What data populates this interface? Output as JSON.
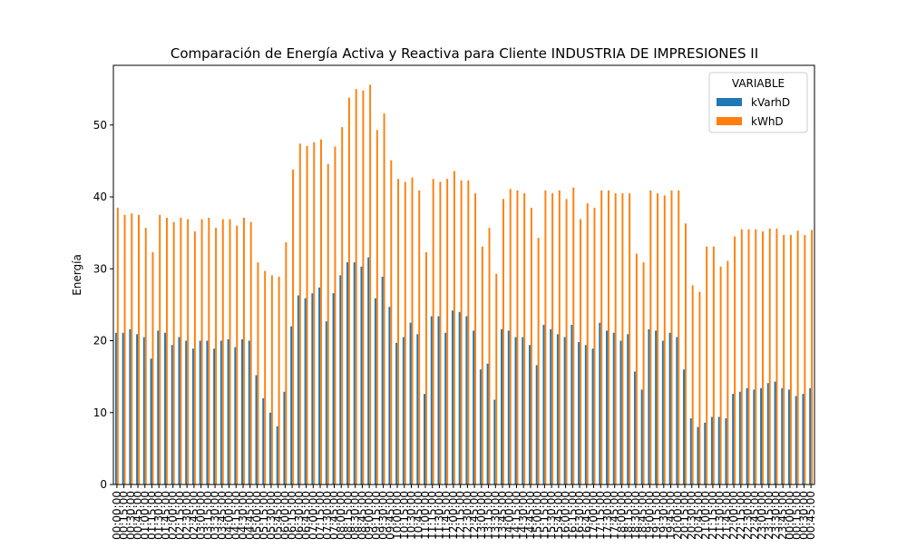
{
  "chart_data": {
    "type": "bar",
    "title": "Comparación de Energía Activa y Reactiva para Cliente INDUSTRIA DE IMPRESIONES II",
    "y_label": "Energía",
    "legend_title": "VARIABLE",
    "legend_position": "upper right",
    "categories": [
      "00:00:00",
      "00:15:00",
      "00:30:00",
      "00:45:00",
      "01:00:00",
      "01:15:00",
      "01:30:00",
      "01:45:00",
      "02:00:00",
      "02:15:00",
      "02:30:00",
      "02:45:00",
      "03:00:00",
      "03:15:00",
      "03:30:00",
      "03:45:00",
      "04:00:00",
      "04:15:00",
      "04:30:00",
      "04:45:00",
      "05:00:00",
      "05:15:00",
      "05:30:00",
      "05:45:00",
      "06:00:00",
      "06:15:00",
      "06:30:00",
      "06:45:00",
      "07:00:00",
      "07:15:00",
      "07:30:00",
      "07:45:00",
      "08:00:00",
      "08:15:00",
      "08:30:00",
      "08:45:00",
      "09:00:00",
      "09:15:00",
      "09:30:00",
      "09:45:00",
      "10:00:00",
      "10:15:00",
      "10:30:00",
      "10:45:00",
      "11:00:00",
      "11:15:00",
      "11:30:00",
      "11:45:00",
      "12:00:00",
      "12:15:00",
      "12:30:00",
      "12:45:00",
      "13:00:00",
      "13:15:00",
      "13:30:00",
      "13:45:00",
      "14:00:00",
      "14:15:00",
      "14:30:00",
      "14:45:00",
      "15:00:00",
      "15:15:00",
      "15:30:00",
      "15:45:00",
      "16:00:00",
      "16:15:00",
      "16:30:00",
      "16:45:00",
      "17:00:00",
      "17:15:00",
      "17:30:00",
      "17:45:00",
      "18:00:00",
      "18:15:00",
      "18:30:00",
      "18:45:00",
      "19:00:00",
      "19:15:00",
      "19:30:00",
      "19:45:00",
      "20:00:00",
      "20:15:00",
      "20:30:00",
      "20:45:00",
      "21:00:00",
      "21:15:00",
      "21:30:00",
      "21:45:00",
      "22:00:00",
      "22:15:00",
      "22:30:00",
      "22:45:00",
      "23:00:00",
      "23:15:00",
      "23:30:00",
      "23:45:00",
      "00:00:00",
      "00:15:00",
      "00:30:00",
      "00:45:00"
    ],
    "series": [
      {
        "name": "kVarhD",
        "color": "#1f77b4",
        "values": [
          21.1,
          21.1,
          21.6,
          20.9,
          20.5,
          17.5,
          21.4,
          21.1,
          19.4,
          20.5,
          20.0,
          18.9,
          20.0,
          20.0,
          18.9,
          20.0,
          20.2,
          19.1,
          20.2,
          20.0,
          15.2,
          12.0,
          10.0,
          8.1,
          12.9,
          22.0,
          26.3,
          25.9,
          26.6,
          27.4,
          22.7,
          26.6,
          29.1,
          30.9,
          30.9,
          30.3,
          31.6,
          25.9,
          28.9,
          24.7,
          19.7,
          20.5,
          22.5,
          20.9,
          12.6,
          23.4,
          23.4,
          21.1,
          24.2,
          24.0,
          23.4,
          21.4,
          16.0,
          16.8,
          11.8,
          21.6,
          21.4,
          20.5,
          20.5,
          19.4,
          16.6,
          22.2,
          21.6,
          20.9,
          20.5,
          22.2,
          19.8,
          19.4,
          18.9,
          22.5,
          21.4,
          21.1,
          20.0,
          20.9,
          15.7,
          13.2,
          21.6,
          21.4,
          20.0,
          21.1,
          20.5,
          16.0,
          9.2,
          8.0,
          8.6,
          9.4,
          9.4,
          9.2,
          12.6,
          12.9,
          13.4,
          13.2,
          13.4,
          14.1,
          14.3,
          13.4,
          13.2,
          12.3,
          12.6,
          13.4
        ]
      },
      {
        "name": "kWhD",
        "color": "#ff7f0e",
        "values": [
          38.5,
          37.5,
          37.7,
          37.5,
          35.7,
          32.3,
          37.5,
          37.1,
          36.5,
          37.1,
          36.9,
          35.2,
          36.9,
          37.1,
          35.7,
          36.9,
          36.9,
          36.0,
          37.1,
          36.5,
          30.9,
          29.7,
          29.1,
          28.9,
          33.7,
          43.8,
          47.4,
          47.1,
          47.6,
          48.0,
          44.6,
          47.0,
          49.7,
          53.8,
          55.0,
          54.8,
          55.6,
          49.3,
          51.6,
          45.1,
          42.5,
          42.1,
          42.7,
          40.9,
          32.3,
          42.5,
          42.1,
          42.5,
          43.6,
          42.3,
          42.3,
          40.5,
          33.1,
          35.7,
          29.3,
          39.7,
          41.1,
          40.9,
          40.5,
          38.5,
          34.3,
          40.9,
          40.5,
          40.9,
          39.7,
          41.3,
          36.9,
          39.1,
          38.5,
          40.9,
          40.9,
          40.5,
          40.5,
          40.5,
          32.1,
          30.9,
          40.9,
          40.5,
          40.2,
          40.9,
          40.9,
          36.3,
          27.7,
          26.8,
          33.1,
          33.1,
          30.3,
          31.1,
          34.5,
          35.5,
          35.5,
          35.5,
          35.2,
          35.6,
          35.6,
          34.7,
          34.7,
          35.3,
          34.7,
          35.4
        ]
      }
    ],
    "ylim": [
      0,
      58.3
    ],
    "yticks": [
      0,
      10,
      20,
      30,
      40,
      50
    ],
    "grid": false
  }
}
